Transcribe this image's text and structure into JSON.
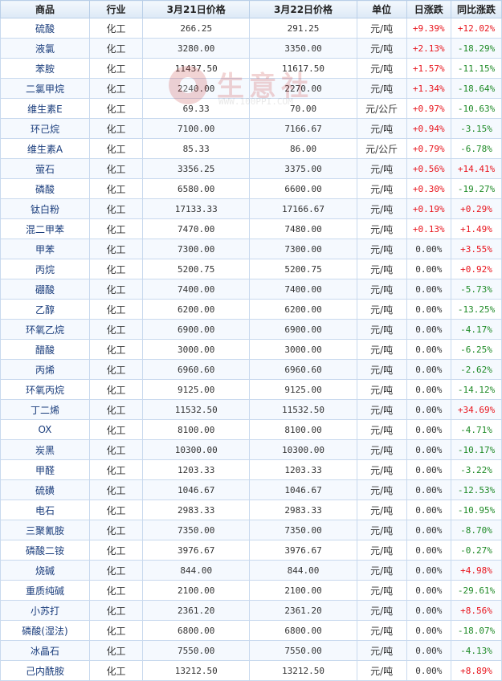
{
  "headers": [
    "商品",
    "行业",
    "3月21日价格",
    "3月22日价格",
    "单位",
    "日涨跌",
    "同比涨跌"
  ],
  "watermark": {
    "brand": "生意社",
    "url": "WWW.100PPI.COM"
  },
  "rows": [
    {
      "name": "硫酸",
      "industry": "化工",
      "p1": "266.25",
      "p2": "291.25",
      "unit": "元/吨",
      "day": "+9.39%",
      "yoy": "+12.02%"
    },
    {
      "name": "液氯",
      "industry": "化工",
      "p1": "3280.00",
      "p2": "3350.00",
      "unit": "元/吨",
      "day": "+2.13%",
      "yoy": "-18.29%"
    },
    {
      "name": "苯胺",
      "industry": "化工",
      "p1": "11437.50",
      "p2": "11617.50",
      "unit": "元/吨",
      "day": "+1.57%",
      "yoy": "-11.15%"
    },
    {
      "name": "二氯甲烷",
      "industry": "化工",
      "p1": "2240.00",
      "p2": "2270.00",
      "unit": "元/吨",
      "day": "+1.34%",
      "yoy": "-18.64%"
    },
    {
      "name": "维生素E",
      "industry": "化工",
      "p1": "69.33",
      "p2": "70.00",
      "unit": "元/公斤",
      "day": "+0.97%",
      "yoy": "-10.63%"
    },
    {
      "name": "环己烷",
      "industry": "化工",
      "p1": "7100.00",
      "p2": "7166.67",
      "unit": "元/吨",
      "day": "+0.94%",
      "yoy": "-3.15%"
    },
    {
      "name": "维生素A",
      "industry": "化工",
      "p1": "85.33",
      "p2": "86.00",
      "unit": "元/公斤",
      "day": "+0.79%",
      "yoy": "-6.78%"
    },
    {
      "name": "萤石",
      "industry": "化工",
      "p1": "3356.25",
      "p2": "3375.00",
      "unit": "元/吨",
      "day": "+0.56%",
      "yoy": "+14.41%"
    },
    {
      "name": "磷酸",
      "industry": "化工",
      "p1": "6580.00",
      "p2": "6600.00",
      "unit": "元/吨",
      "day": "+0.30%",
      "yoy": "-19.27%"
    },
    {
      "name": "钛白粉",
      "industry": "化工",
      "p1": "17133.33",
      "p2": "17166.67",
      "unit": "元/吨",
      "day": "+0.19%",
      "yoy": "+0.29%"
    },
    {
      "name": "混二甲苯",
      "industry": "化工",
      "p1": "7470.00",
      "p2": "7480.00",
      "unit": "元/吨",
      "day": "+0.13%",
      "yoy": "+1.49%"
    },
    {
      "name": "甲苯",
      "industry": "化工",
      "p1": "7300.00",
      "p2": "7300.00",
      "unit": "元/吨",
      "day": "0.00%",
      "yoy": "+3.55%"
    },
    {
      "name": "丙烷",
      "industry": "化工",
      "p1": "5200.75",
      "p2": "5200.75",
      "unit": "元/吨",
      "day": "0.00%",
      "yoy": "+0.92%"
    },
    {
      "name": "硼酸",
      "industry": "化工",
      "p1": "7400.00",
      "p2": "7400.00",
      "unit": "元/吨",
      "day": "0.00%",
      "yoy": "-5.73%"
    },
    {
      "name": "乙醇",
      "industry": "化工",
      "p1": "6200.00",
      "p2": "6200.00",
      "unit": "元/吨",
      "day": "0.00%",
      "yoy": "-13.25%"
    },
    {
      "name": "环氧乙烷",
      "industry": "化工",
      "p1": "6900.00",
      "p2": "6900.00",
      "unit": "元/吨",
      "day": "0.00%",
      "yoy": "-4.17%"
    },
    {
      "name": "醋酸",
      "industry": "化工",
      "p1": "3000.00",
      "p2": "3000.00",
      "unit": "元/吨",
      "day": "0.00%",
      "yoy": "-6.25%"
    },
    {
      "name": "丙烯",
      "industry": "化工",
      "p1": "6960.60",
      "p2": "6960.60",
      "unit": "元/吨",
      "day": "0.00%",
      "yoy": "-2.62%"
    },
    {
      "name": "环氧丙烷",
      "industry": "化工",
      "p1": "9125.00",
      "p2": "9125.00",
      "unit": "元/吨",
      "day": "0.00%",
      "yoy": "-14.12%"
    },
    {
      "name": "丁二烯",
      "industry": "化工",
      "p1": "11532.50",
      "p2": "11532.50",
      "unit": "元/吨",
      "day": "0.00%",
      "yoy": "+34.69%"
    },
    {
      "name": "OX",
      "industry": "化工",
      "p1": "8100.00",
      "p2": "8100.00",
      "unit": "元/吨",
      "day": "0.00%",
      "yoy": "-4.71%"
    },
    {
      "name": "炭黑",
      "industry": "化工",
      "p1": "10300.00",
      "p2": "10300.00",
      "unit": "元/吨",
      "day": "0.00%",
      "yoy": "-10.17%"
    },
    {
      "name": "甲醛",
      "industry": "化工",
      "p1": "1203.33",
      "p2": "1203.33",
      "unit": "元/吨",
      "day": "0.00%",
      "yoy": "-3.22%"
    },
    {
      "name": "硫磺",
      "industry": "化工",
      "p1": "1046.67",
      "p2": "1046.67",
      "unit": "元/吨",
      "day": "0.00%",
      "yoy": "-12.53%"
    },
    {
      "name": "电石",
      "industry": "化工",
      "p1": "2983.33",
      "p2": "2983.33",
      "unit": "元/吨",
      "day": "0.00%",
      "yoy": "-10.95%"
    },
    {
      "name": "三聚氰胺",
      "industry": "化工",
      "p1": "7350.00",
      "p2": "7350.00",
      "unit": "元/吨",
      "day": "0.00%",
      "yoy": "-8.70%"
    },
    {
      "name": "磷酸二铵",
      "industry": "化工",
      "p1": "3976.67",
      "p2": "3976.67",
      "unit": "元/吨",
      "day": "0.00%",
      "yoy": "-0.27%"
    },
    {
      "name": "烧碱",
      "industry": "化工",
      "p1": "844.00",
      "p2": "844.00",
      "unit": "元/吨",
      "day": "0.00%",
      "yoy": "+4.98%"
    },
    {
      "name": "重质纯碱",
      "industry": "化工",
      "p1": "2100.00",
      "p2": "2100.00",
      "unit": "元/吨",
      "day": "0.00%",
      "yoy": "-29.61%"
    },
    {
      "name": "小苏打",
      "industry": "化工",
      "p1": "2361.20",
      "p2": "2361.20",
      "unit": "元/吨",
      "day": "0.00%",
      "yoy": "+8.56%"
    },
    {
      "name": "磷酸(湿法)",
      "industry": "化工",
      "p1": "6800.00",
      "p2": "6800.00",
      "unit": "元/吨",
      "day": "0.00%",
      "yoy": "-18.07%"
    },
    {
      "name": "冰晶石",
      "industry": "化工",
      "p1": "7550.00",
      "p2": "7550.00",
      "unit": "元/吨",
      "day": "0.00%",
      "yoy": "-4.13%"
    },
    {
      "name": "己内酰胺",
      "industry": "化工",
      "p1": "13212.50",
      "p2": "13212.50",
      "unit": "元/吨",
      "day": "0.00%",
      "yoy": "+8.89%"
    }
  ]
}
